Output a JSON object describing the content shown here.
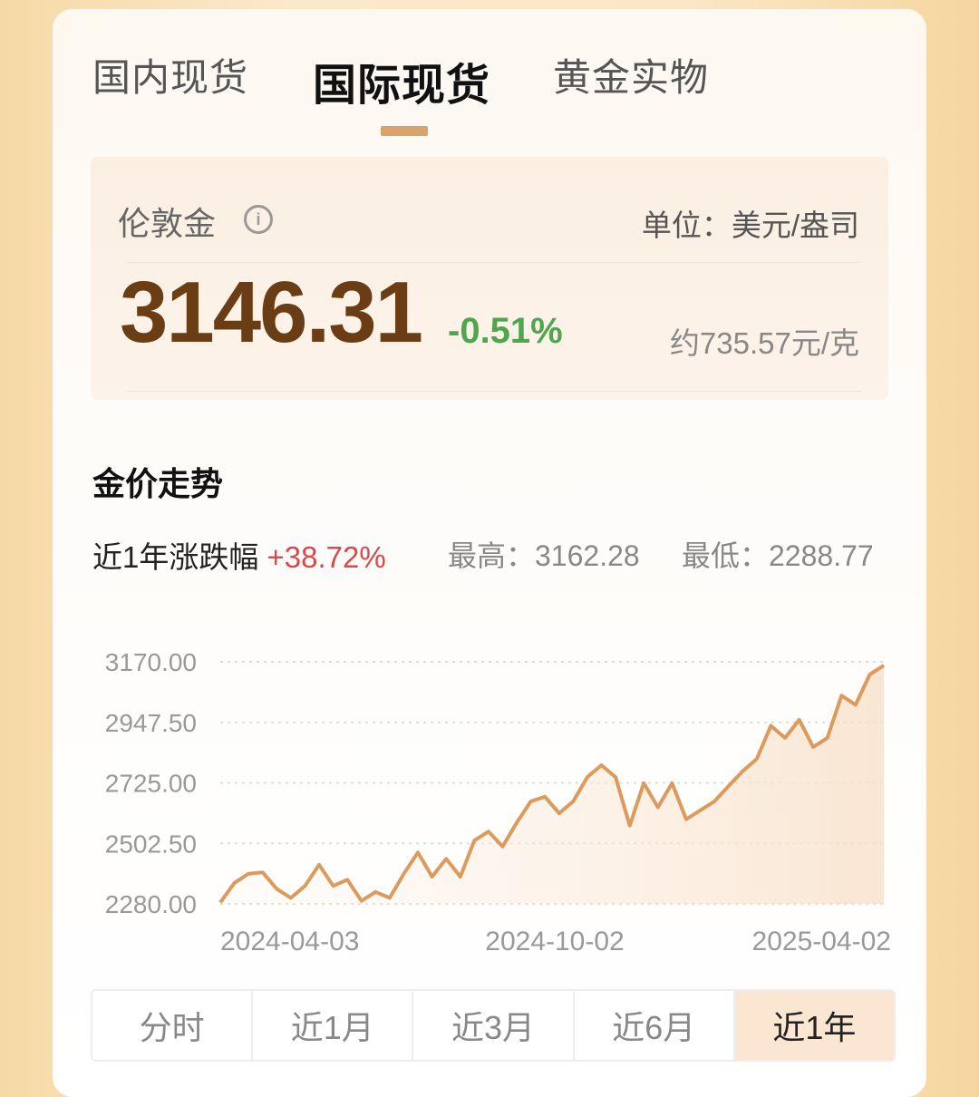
{
  "tabs": [
    {
      "label": "国内现货"
    },
    {
      "label": "国际现货",
      "active": true
    },
    {
      "label": "黄金实物"
    }
  ],
  "quote": {
    "name": "伦敦金",
    "info_icon": "info-icon",
    "unit": "单位：美元/盎司",
    "price": "3146.31",
    "change": "-0.51%",
    "per_gram": "约735.57元/克"
  },
  "trend": {
    "title": "金价走势",
    "range_label": "近1年涨跌幅",
    "range_change": "+38.72%",
    "high": "最高：3162.28",
    "low": "最低：2288.77"
  },
  "periods": [
    {
      "label": "分时"
    },
    {
      "label": "近1月"
    },
    {
      "label": "近3月"
    },
    {
      "label": "近6月"
    },
    {
      "label": "近1年",
      "active": true
    }
  ],
  "colors": {
    "accent": "#d9a46c",
    "line": "#dc9a5c",
    "down": "#4fa64f",
    "up": "#d9484a",
    "price": "#6b3d14"
  },
  "chart_data": {
    "type": "area",
    "xlabels": [
      "2024-04-03",
      "2024-10-02",
      "2025-04-02"
    ],
    "yticks": [
      "3170.00",
      "2947.50",
      "2725.00",
      "2502.50",
      "2280.00"
    ],
    "ylim": [
      2280,
      3170
    ],
    "grid": true,
    "values": [
      2285,
      2357,
      2391,
      2396,
      2335,
      2302,
      2346,
      2424,
      2346,
      2369,
      2291,
      2324,
      2302,
      2391,
      2469,
      2380,
      2446,
      2380,
      2513,
      2546,
      2491,
      2579,
      2657,
      2674,
      2613,
      2657,
      2746,
      2790,
      2746,
      2568,
      2724,
      2635,
      2724,
      2591,
      2624,
      2657,
      2713,
      2768,
      2813,
      2935,
      2890,
      2957,
      2857,
      2890,
      3046,
      3012,
      3123,
      3157
    ]
  }
}
